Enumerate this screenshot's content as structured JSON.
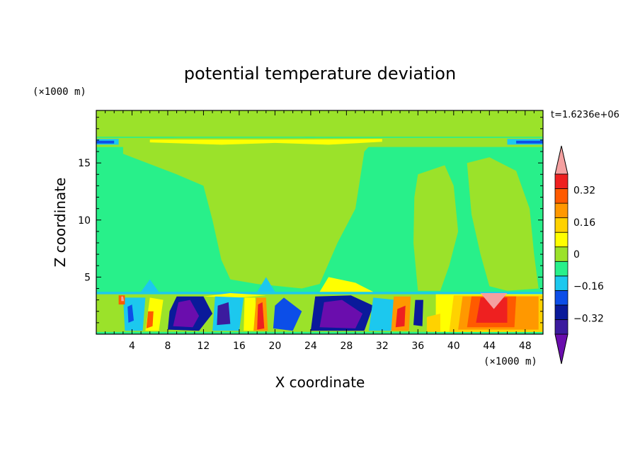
{
  "chart_data": {
    "type": "heatmap",
    "title": "potential temperature deviation",
    "xlabel": "X coordinate",
    "ylabel": "Z coordinate",
    "x_unit": "(×1000 m)",
    "y_unit": "(×1000 m)",
    "time_label": "t=1.6236e+06",
    "xlim": [
      0,
      50
    ],
    "ylim": [
      0,
      19.6
    ],
    "x_ticks": [
      "4",
      "8",
      "12",
      "16",
      "20",
      "24",
      "28",
      "32",
      "36",
      "40",
      "44",
      "48"
    ],
    "y_ticks": [
      "5",
      "10",
      "15"
    ],
    "x_tick_values": [
      4,
      8,
      12,
      16,
      20,
      24,
      28,
      32,
      36,
      40,
      44,
      48
    ],
    "y_tick_values": [
      5,
      10,
      15
    ],
    "colorbar": {
      "levels": [
        -0.48,
        -0.4,
        -0.32,
        -0.24,
        -0.16,
        -0.08,
        0,
        0.08,
        0.16,
        0.24,
        0.32,
        0.4,
        0.48
      ],
      "labels": [
        "0.32",
        "0.16",
        "0",
        "−0.16",
        "−0.32"
      ],
      "label_values": [
        0.32,
        0.16,
        0,
        -0.16,
        -0.32
      ],
      "colors": [
        "#6a0dad",
        "#3b1b9e",
        "#0a1a9a",
        "#0c4ee8",
        "#1cc8ee",
        "#28f08a",
        "#9be22a",
        "#ffff00",
        "#ffd200",
        "#ff9800",
        "#ff5a00",
        "#ee2020",
        "#f4a0a0"
      ],
      "extend": "both"
    },
    "regions": [
      {
        "fill_index": 5,
        "points": [
          [
            0,
            0
          ],
          [
            50,
            0
          ],
          [
            50,
            19.6
          ],
          [
            0,
            19.6
          ]
        ]
      },
      {
        "fill_index": 6,
        "points": [
          [
            0,
            17.3
          ],
          [
            50,
            17.3
          ],
          [
            50,
            19.6
          ],
          [
            0,
            19.6
          ]
        ]
      },
      {
        "fill_index": 6,
        "points": [
          [
            3,
            15.8
          ],
          [
            9,
            14
          ],
          [
            12,
            13
          ],
          [
            13,
            10
          ],
          [
            14,
            6.5
          ],
          [
            15,
            4.8
          ],
          [
            18,
            4.4
          ],
          [
            23,
            4
          ],
          [
            25,
            4.4
          ],
          [
            27,
            8
          ],
          [
            29,
            11
          ],
          [
            30,
            16
          ],
          [
            31.2,
            17
          ],
          [
            23,
            17.2
          ],
          [
            9,
            17.2
          ],
          [
            3,
            17
          ]
        ]
      },
      {
        "fill_index": 6,
        "points": [
          [
            0,
            19.6
          ],
          [
            1.5,
            19.6
          ],
          [
            1.2,
            17.8
          ],
          [
            0,
            17.6
          ]
        ]
      },
      {
        "fill_index": 6,
        "points": [
          [
            24.5,
            17.3
          ],
          [
            32,
            17.3
          ],
          [
            33,
            19.6
          ],
          [
            24.5,
            19.6
          ]
        ]
      },
      {
        "fill_index": 6,
        "points": [
          [
            36,
            14
          ],
          [
            39,
            14.8
          ],
          [
            40,
            13
          ],
          [
            40.5,
            9
          ],
          [
            39.5,
            6
          ],
          [
            38.5,
            3.8
          ],
          [
            36,
            3.8
          ],
          [
            35.5,
            8
          ],
          [
            35.6,
            12
          ]
        ]
      },
      {
        "fill_index": 6,
        "points": [
          [
            41.5,
            15
          ],
          [
            44,
            15.5
          ],
          [
            47,
            14.3
          ],
          [
            48.5,
            11
          ],
          [
            49,
            7
          ],
          [
            49.5,
            4
          ],
          [
            46,
            3.8
          ],
          [
            44,
            4.2
          ],
          [
            43,
            7
          ],
          [
            42,
            10.5
          ]
        ]
      },
      {
        "fill_index": 6,
        "points": [
          [
            0,
            0.2
          ],
          [
            50,
            0.2
          ],
          [
            50,
            3.6
          ],
          [
            0,
            3.6
          ]
        ]
      },
      {
        "fill_index": 6,
        "points": [
          [
            0,
            16.4
          ],
          [
            50,
            16.4
          ],
          [
            50,
            17.2
          ],
          [
            0,
            17.2
          ]
        ]
      },
      {
        "fill_index": 7,
        "points": [
          [
            6,
            16.8
          ],
          [
            14,
            16.6
          ],
          [
            20,
            16.75
          ],
          [
            26,
            16.6
          ],
          [
            32,
            16.85
          ],
          [
            32,
            17.1
          ],
          [
            20,
            17.05
          ],
          [
            6,
            17.05
          ]
        ]
      },
      {
        "fill_index": 4,
        "points": [
          [
            0,
            16.6
          ],
          [
            2.5,
            16.6
          ],
          [
            2.5,
            17.1
          ],
          [
            0,
            17.1
          ]
        ]
      },
      {
        "fill_index": 4,
        "points": [
          [
            46,
            16.6
          ],
          [
            50,
            16.6
          ],
          [
            50,
            17.1
          ],
          [
            46,
            17.1
          ]
        ]
      },
      {
        "fill_index": 3,
        "points": [
          [
            0,
            16.7
          ],
          [
            2,
            16.7
          ],
          [
            2,
            16.95
          ],
          [
            0,
            16.95
          ]
        ]
      },
      {
        "fill_index": 3,
        "points": [
          [
            47,
            16.7
          ],
          [
            50,
            16.7
          ],
          [
            50,
            16.95
          ],
          [
            47,
            16.95
          ]
        ]
      },
      {
        "fill_index": 4,
        "points": [
          [
            0,
            3.5
          ],
          [
            50,
            3.5
          ],
          [
            50,
            3.7
          ],
          [
            0,
            3.7
          ]
        ]
      },
      {
        "fill_index": 4,
        "points": [
          [
            5,
            3.7
          ],
          [
            6,
            4.8
          ],
          [
            7,
            3.7
          ]
        ]
      },
      {
        "fill_index": 4,
        "points": [
          [
            18,
            3.7
          ],
          [
            19,
            5
          ],
          [
            20,
            3.7
          ]
        ]
      },
      {
        "fill_index": 7,
        "points": [
          [
            25,
            3.7
          ],
          [
            26,
            5
          ],
          [
            29,
            4.5
          ],
          [
            31,
            3.7
          ]
        ]
      },
      {
        "fill_index": 7,
        "points": [
          [
            12,
            3.3
          ],
          [
            16,
            3.2
          ],
          [
            19,
            3.4
          ],
          [
            15,
            3.6
          ]
        ]
      },
      {
        "fill_index": 6,
        "points": [
          [
            0,
            0.2
          ],
          [
            3,
            0.2
          ],
          [
            3,
            3.3
          ],
          [
            0,
            3.3
          ]
        ]
      },
      {
        "fill_index": 4,
        "points": [
          [
            3.2,
            0.3
          ],
          [
            5.2,
            0.3
          ],
          [
            5.5,
            3.2
          ],
          [
            3,
            3.2
          ]
        ]
      },
      {
        "fill_index": 3,
        "points": [
          [
            3.6,
            1
          ],
          [
            4.2,
            1.2
          ],
          [
            4,
            2.6
          ],
          [
            3.5,
            2.4
          ]
        ]
      },
      {
        "fill_index": 10,
        "points": [
          [
            2.5,
            2.6
          ],
          [
            3.2,
            2.6
          ],
          [
            3.2,
            3.4
          ],
          [
            2.5,
            3.4
          ]
        ]
      },
      {
        "fill_index": 12,
        "points": [
          [
            2.8,
            2.9
          ],
          [
            3.1,
            2.9
          ],
          [
            3.0,
            3.3
          ],
          [
            2.8,
            3.3
          ]
        ]
      },
      {
        "fill_index": 7,
        "points": [
          [
            5.5,
            0.3
          ],
          [
            7,
            0.3
          ],
          [
            7.5,
            3
          ],
          [
            6,
            3.2
          ]
        ]
      },
      {
        "fill_index": 10,
        "points": [
          [
            5.6,
            0.5
          ],
          [
            6.3,
            0.7
          ],
          [
            6.4,
            2
          ],
          [
            5.8,
            2
          ]
        ]
      },
      {
        "fill_index": 2,
        "points": [
          [
            8,
            0.4
          ],
          [
            11.5,
            0.3
          ],
          [
            13,
            1.8
          ],
          [
            12,
            3.3
          ],
          [
            9,
            3.3
          ],
          [
            8.2,
            2
          ]
        ]
      },
      {
        "fill_index": 0,
        "points": [
          [
            8.6,
            0.7
          ],
          [
            10.8,
            0.6
          ],
          [
            11.5,
            1.6
          ],
          [
            10.5,
            3
          ],
          [
            9.2,
            2.8
          ]
        ]
      },
      {
        "fill_index": 4,
        "points": [
          [
            13,
            0.3
          ],
          [
            16,
            0.3
          ],
          [
            16.5,
            3.2
          ],
          [
            13.3,
            3.3
          ]
        ]
      },
      {
        "fill_index": 1,
        "points": [
          [
            13.5,
            0.8
          ],
          [
            15,
            0.9
          ],
          [
            14.8,
            2.8
          ],
          [
            13.6,
            2.5
          ]
        ]
      },
      {
        "fill_index": 7,
        "points": [
          [
            16.5,
            0.3
          ],
          [
            18,
            0.3
          ],
          [
            17.8,
            3.2
          ],
          [
            16.6,
            3.2
          ]
        ]
      },
      {
        "fill_index": 9,
        "points": [
          [
            17.6,
            0.3
          ],
          [
            19.2,
            0.3
          ],
          [
            19,
            3.2
          ],
          [
            17.9,
            3.2
          ]
        ]
      },
      {
        "fill_index": 11,
        "points": [
          [
            18,
            0.4
          ],
          [
            18.8,
            0.5
          ],
          [
            18.6,
            2.8
          ],
          [
            18.1,
            2.6
          ]
        ]
      },
      {
        "fill_index": 3,
        "points": [
          [
            19.8,
            0.5
          ],
          [
            22,
            0.3
          ],
          [
            23,
            2
          ],
          [
            21,
            3.2
          ],
          [
            20,
            2.5
          ]
        ]
      },
      {
        "fill_index": 2,
        "points": [
          [
            24,
            0.3
          ],
          [
            30,
            0.3
          ],
          [
            31,
            2.5
          ],
          [
            28.5,
            3.4
          ],
          [
            24.5,
            3.3
          ]
        ]
      },
      {
        "fill_index": 0,
        "points": [
          [
            25,
            0.6
          ],
          [
            29,
            0.5
          ],
          [
            29.8,
            1.8
          ],
          [
            27.5,
            3
          ],
          [
            25.5,
            2.8
          ]
        ]
      },
      {
        "fill_index": 4,
        "points": [
          [
            30.5,
            0.3
          ],
          [
            33,
            0.3
          ],
          [
            33.5,
            3
          ],
          [
            31,
            3.2
          ]
        ]
      },
      {
        "fill_index": 9,
        "points": [
          [
            33,
            0.3
          ],
          [
            35,
            0.3
          ],
          [
            35.2,
            3.3
          ],
          [
            33.3,
            3.3
          ]
        ]
      },
      {
        "fill_index": 11,
        "points": [
          [
            33.5,
            0.6
          ],
          [
            34.5,
            0.7
          ],
          [
            34.6,
            2.5
          ],
          [
            33.7,
            2.2
          ]
        ]
      },
      {
        "fill_index": 2,
        "points": [
          [
            35.5,
            0.8
          ],
          [
            36.5,
            0.7
          ],
          [
            36.6,
            3
          ],
          [
            35.7,
            3
          ]
        ]
      },
      {
        "fill_index": 7,
        "points": [
          [
            38,
            0.2
          ],
          [
            50,
            0.2
          ],
          [
            50,
            3.5
          ],
          [
            38,
            3.5
          ]
        ]
      },
      {
        "fill_index": 8,
        "points": [
          [
            39.5,
            0.2
          ],
          [
            50,
            0.2
          ],
          [
            50,
            3.4
          ],
          [
            40,
            3.4
          ]
        ]
      },
      {
        "fill_index": 9,
        "points": [
          [
            40.5,
            0.4
          ],
          [
            49.5,
            0.4
          ],
          [
            49.5,
            3.3
          ],
          [
            41,
            3.3
          ]
        ]
      },
      {
        "fill_index": 10,
        "points": [
          [
            41.5,
            0.6
          ],
          [
            46.8,
            0.6
          ],
          [
            47,
            3.3
          ],
          [
            42,
            3.3
          ]
        ]
      },
      {
        "fill_index": 11,
        "points": [
          [
            42.5,
            1
          ],
          [
            46,
            1
          ],
          [
            46,
            3.2
          ],
          [
            43,
            3.2
          ]
        ]
      },
      {
        "fill_index": 12,
        "points": [
          [
            43,
            3.6
          ],
          [
            46,
            3.6
          ],
          [
            44.5,
            2.2
          ]
        ]
      },
      {
        "fill_index": 8,
        "points": [
          [
            37,
            0.2
          ],
          [
            38.5,
            0.2
          ],
          [
            38.5,
            1.8
          ],
          [
            37,
            1.5
          ]
        ]
      }
    ]
  }
}
